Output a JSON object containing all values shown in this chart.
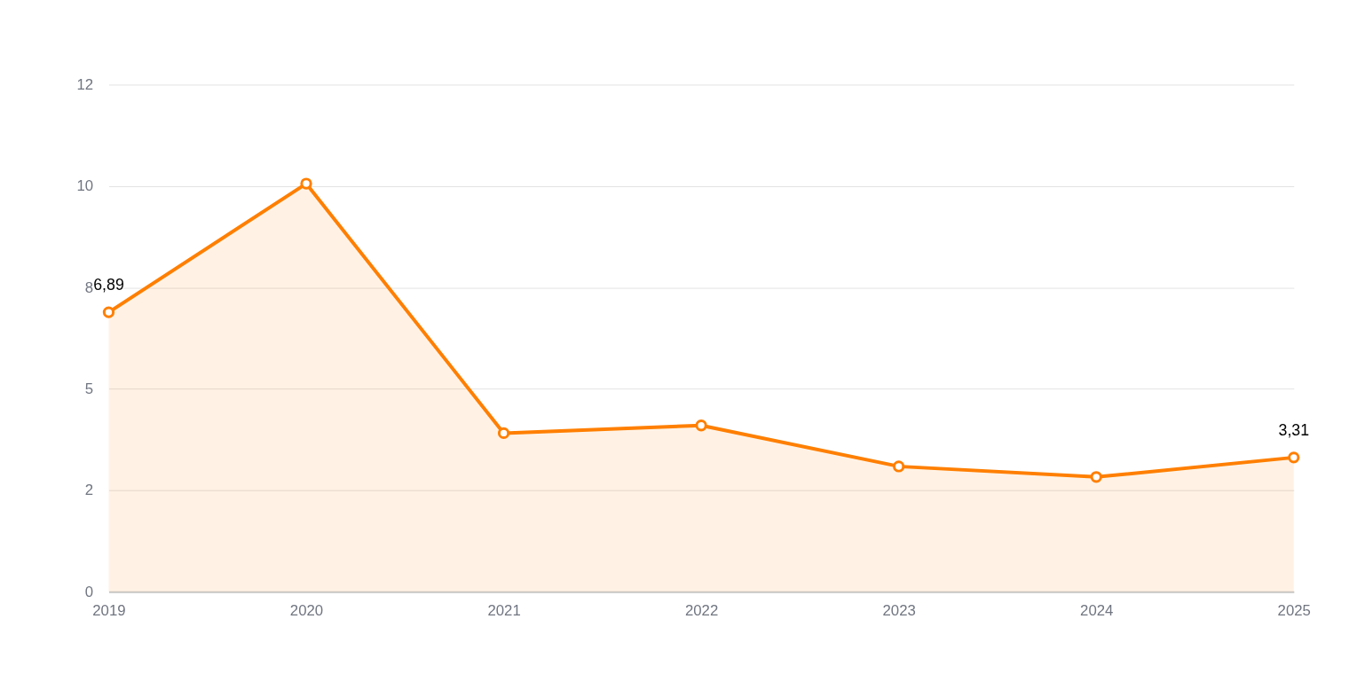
{
  "chart_data": {
    "type": "area",
    "categories": [
      "2019",
      "2020",
      "2021",
      "2022",
      "2023",
      "2024",
      "2025"
    ],
    "series": [
      {
        "color": "#ff7f00",
        "values": [
          6.89,
          10.06,
          3.91,
          4.1,
          3.09,
          2.83,
          3.31
        ],
        "value_labels": [
          "6,89",
          null,
          null,
          null,
          null,
          null,
          "3,31"
        ]
      }
    ],
    "ylim": [
      0,
      12.5
    ],
    "yticks": [
      0,
      {
        "value": 2.5,
        "label": "2"
      },
      5,
      {
        "value": 7.5,
        "label": "8"
      },
      10,
      {
        "value": 12.5,
        "label": "12"
      }
    ],
    "grid": "y",
    "marker": "circle",
    "line_style": "solid"
  }
}
